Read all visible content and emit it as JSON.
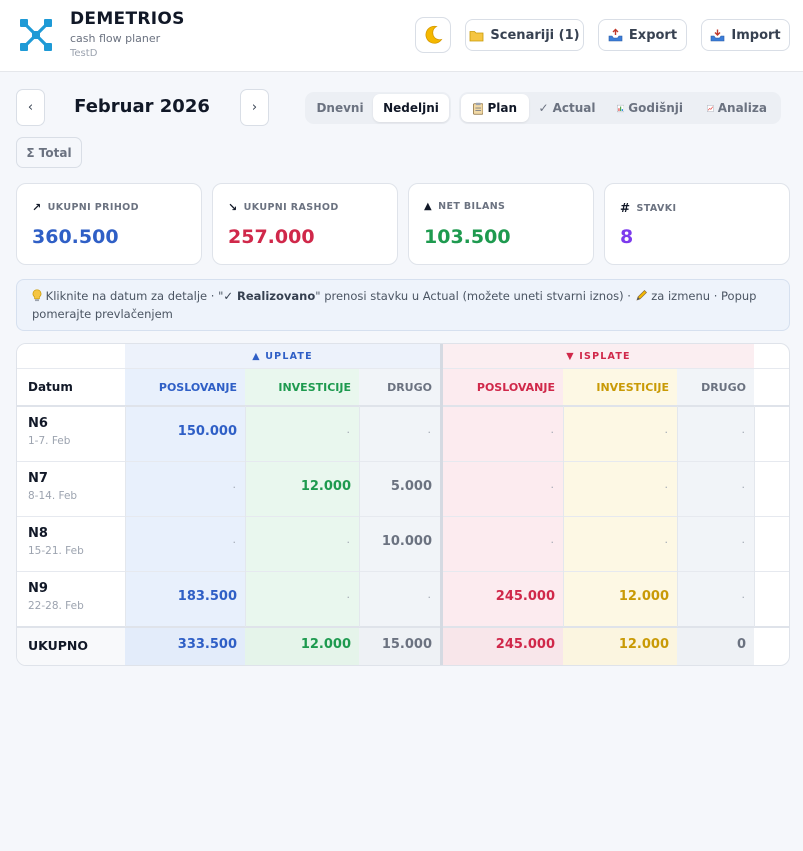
{
  "header": {
    "app_name": "DEMETRIOS",
    "subtitle": "cash flow planer",
    "user": "TestD",
    "scenarios_label": "Scenariji (1)",
    "export_label": "Export",
    "import_label": "Import"
  },
  "nav": {
    "prev": "‹",
    "next": "›",
    "month": "Februar 2026",
    "period_options": [
      "Dnevni",
      "Nedeljni"
    ],
    "period_selected": "Nedeljni",
    "view_options": [
      {
        "label": "Plan",
        "icon": "clipboard-icon"
      },
      {
        "label": "Actual",
        "icon": "check-icon"
      },
      {
        "label": "Godišnji",
        "icon": "bar-chart-icon"
      },
      {
        "label": "Analiza",
        "icon": "line-chart-icon"
      }
    ],
    "view_selected": "Plan",
    "total_label": "Σ Total"
  },
  "summary": [
    {
      "icon": "↗",
      "label": "UKUPNI PRIHOD",
      "value": "360.500",
      "color": "#2f5fc6"
    },
    {
      "icon": "↘",
      "label": "UKUPNI RASHOD",
      "value": "257.000",
      "color": "#d0284a"
    },
    {
      "icon": "▲",
      "label": "NET BILANS",
      "value": "103.500",
      "color": "#1e9a4f"
    },
    {
      "icon": "#",
      "label": "STAVKI",
      "value": "8",
      "color": "#7c3aed"
    }
  ],
  "info": {
    "part1": " Kliknite na datum za detalje · \"",
    "bold": "✓ Realizovano",
    "part2": "\" prenosi stavku u Actual (možete uneti stvarni iznos) · ",
    "part3": " za izmenu · Popup pomerajte prevlačenjem"
  },
  "table": {
    "group_in": "▲ UPLATE",
    "group_out": "▼ ISPLATE",
    "date_header": "Datum",
    "columns": [
      "POSLOVANJE",
      "INVESTICIJE",
      "DRUGO",
      "POSLOVANJE",
      "INVESTICIJE",
      "DRUGO"
    ],
    "rows": [
      {
        "week": "N6",
        "range": "1-7. Feb",
        "values": [
          "150.000",
          "·",
          "·",
          "·",
          "·",
          "·"
        ]
      },
      {
        "week": "N7",
        "range": "8-14. Feb",
        "values": [
          "·",
          "12.000",
          "5.000",
          "·",
          "·",
          "·"
        ]
      },
      {
        "week": "N8",
        "range": "15-21. Feb",
        "values": [
          "·",
          "·",
          "10.000",
          "·",
          "·",
          "·"
        ]
      },
      {
        "week": "N9",
        "range": "22-28. Feb",
        "values": [
          "183.500",
          "·",
          "·",
          "245.000",
          "12.000",
          "·"
        ]
      }
    ],
    "total_label": "UKUPNO",
    "totals": [
      "333.500",
      "12.000",
      "15.000",
      "245.000",
      "12.000",
      "0"
    ]
  },
  "colors": {
    "in_business": "#2f5fc6",
    "in_invest": "#1e9a4f",
    "other": "#6b7280",
    "out_business": "#d0284a",
    "out_invest": "#c99a06"
  }
}
